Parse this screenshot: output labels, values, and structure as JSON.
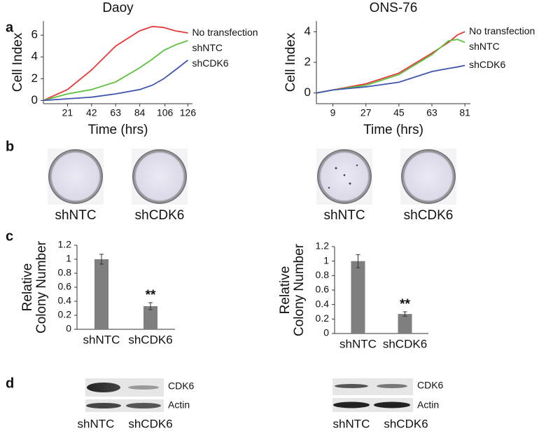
{
  "panels": [
    "a",
    "b",
    "c",
    "d"
  ],
  "chart_data": [
    {
      "type": "line",
      "title": "Daoy",
      "xlabel": "Time (hrs)",
      "ylabel": "Cell Index",
      "x": [
        0,
        21,
        42,
        63,
        84,
        95,
        105,
        115,
        126
      ],
      "xlim": [
        0,
        130
      ],
      "xticks": [
        21,
        42,
        63,
        84,
        106,
        126
      ],
      "ylim": [
        -0.3,
        7.3
      ],
      "yticks": [
        0,
        2,
        4,
        6
      ],
      "series": [
        {
          "name": "No transfection",
          "color": "#e8393a",
          "values": [
            0,
            1.0,
            2.8,
            5.0,
            6.4,
            6.8,
            6.7,
            6.4,
            6.2
          ]
        },
        {
          "name": "shNTC",
          "color": "#5cc13c",
          "values": [
            0,
            0.6,
            1.0,
            1.7,
            3.0,
            3.8,
            4.6,
            5.1,
            5.5
          ]
        },
        {
          "name": "shCDK6",
          "color": "#3e56b0",
          "values": [
            0,
            0.15,
            0.3,
            0.6,
            1.0,
            1.4,
            2.0,
            2.8,
            3.7
          ]
        }
      ]
    },
    {
      "type": "line",
      "title": "ONS-76",
      "xlabel": "Time (hrs)",
      "ylabel": "Cell Index",
      "x": [
        0,
        9,
        27,
        45,
        63,
        72,
        77,
        81
      ],
      "xlim": [
        0,
        84
      ],
      "xticks": [
        9,
        27,
        45,
        63,
        81
      ],
      "ylim": [
        -0.7,
        4.7
      ],
      "yticks": [
        0,
        2,
        4
      ],
      "series": [
        {
          "name": "No transfection",
          "color": "#e8393a",
          "values": [
            0,
            0.2,
            0.6,
            1.3,
            2.6,
            3.3,
            3.8,
            4.0
          ]
        },
        {
          "name": "shNTC",
          "color": "#5cc13c",
          "values": [
            0,
            0.2,
            0.5,
            1.2,
            2.5,
            3.4,
            3.5,
            3.3
          ]
        },
        {
          "name": "shCDK6",
          "color": "#3e56b0",
          "values": [
            0,
            0.2,
            0.4,
            0.7,
            1.4,
            1.6,
            1.7,
            1.8
          ]
        }
      ]
    },
    {
      "type": "bar",
      "ylabel": [
        "Relative",
        "Colony Number"
      ],
      "categories": [
        "shNTC",
        "shCDK6"
      ],
      "values": [
        1,
        0.33
      ],
      "errors": [
        0.07,
        0.05
      ],
      "annotations": [
        null,
        "**"
      ],
      "color": "#7f7f7f",
      "ylim": [
        0,
        1.2
      ],
      "yticks": [
        0,
        0.2,
        0.4,
        0.6,
        0.8,
        1,
        1.2
      ]
    },
    {
      "type": "bar",
      "ylabel": [
        "Relative",
        "Colony Number"
      ],
      "categories": [
        "shNTC",
        "shCDK6"
      ],
      "values": [
        1,
        0.27
      ],
      "errors": [
        0.09,
        0.03
      ],
      "annotations": [
        null,
        "**"
      ],
      "color": "#7f7f7f",
      "ylim": [
        0,
        1.2
      ],
      "yticks": [
        0,
        0.2,
        0.4,
        0.6,
        0.8,
        1,
        1.2
      ]
    }
  ],
  "plates": [
    [
      "shNTC",
      "shCDK6"
    ],
    [
      "shNTC",
      "shCDK6"
    ]
  ],
  "blots": [
    {
      "bands": [
        "CDK6",
        "Actin"
      ],
      "lanes": [
        "shNTC",
        "shCDK6"
      ]
    },
    {
      "bands": [
        "CDK6",
        "Actin"
      ],
      "lanes": [
        "shNTC",
        "shCDK6"
      ]
    }
  ]
}
